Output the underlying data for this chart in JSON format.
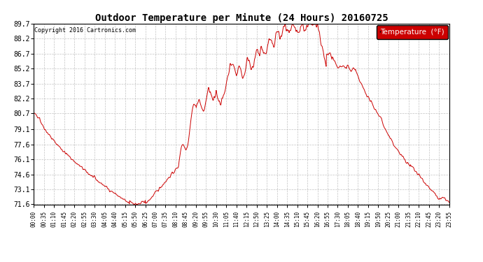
{
  "title": "Outdoor Temperature per Minute (24 Hours) 20160725",
  "copyright_text": "Copyright 2016 Cartronics.com",
  "legend_label": "Temperature  (°F)",
  "legend_bg": "#cc0000",
  "legend_text_color": "#ffffff",
  "line_color": "#cc0000",
  "background_color": "#ffffff",
  "grid_color": "#bbbbbb",
  "ylim": [
    71.6,
    89.7
  ],
  "yticks": [
    71.6,
    73.1,
    74.6,
    76.1,
    77.6,
    79.1,
    80.7,
    82.2,
    83.7,
    85.2,
    86.7,
    88.2,
    89.7
  ],
  "xtick_labels": [
    "00:00",
    "00:35",
    "01:10",
    "01:45",
    "02:20",
    "02:55",
    "03:30",
    "04:05",
    "04:40",
    "05:15",
    "05:50",
    "06:25",
    "07:00",
    "07:35",
    "08:10",
    "08:45",
    "09:20",
    "09:55",
    "10:30",
    "11:05",
    "11:40",
    "12:15",
    "12:50",
    "13:25",
    "14:00",
    "14:35",
    "15:10",
    "15:45",
    "16:20",
    "16:55",
    "17:30",
    "18:05",
    "18:40",
    "19:15",
    "19:50",
    "20:25",
    "21:00",
    "21:35",
    "22:10",
    "22:45",
    "23:20",
    "23:55"
  ]
}
